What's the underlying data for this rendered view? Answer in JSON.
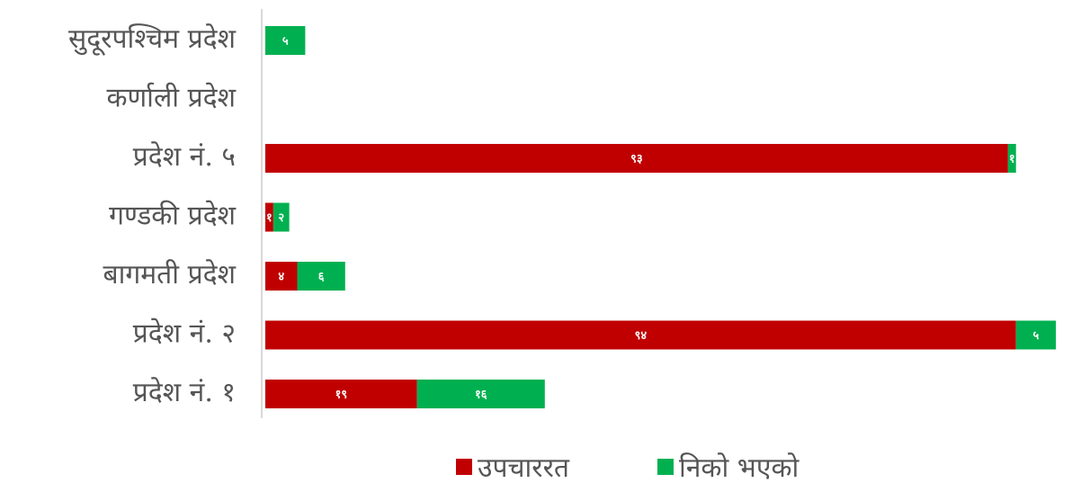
{
  "chart_data": {
    "type": "bar",
    "orientation": "horizontal",
    "stacked": true,
    "categories": [
      "सुदूरपश्चिम प्रदेश",
      "कर्णाली प्रदेश",
      "प्रदेश नं. ५",
      "गण्डकी प्रदेश",
      "बागमती प्रदेश",
      "प्रदेश नं. २",
      "प्रदेश नं. १"
    ],
    "series": [
      {
        "name": "उपचाररत",
        "color": "#c00000",
        "values": [
          0,
          0,
          93,
          1,
          4,
          94,
          19
        ],
        "labels": [
          "",
          "",
          "९३",
          "१",
          "४",
          "९४",
          "१९"
        ]
      },
      {
        "name": "निको भएको",
        "color": "#00b050",
        "values": [
          5,
          0,
          1,
          2,
          6,
          5,
          16
        ],
        "labels": [
          "५",
          "",
          "१",
          "२",
          "६",
          "५",
          "१६"
        ]
      }
    ],
    "legend_position": "bottom",
    "grid": false
  }
}
